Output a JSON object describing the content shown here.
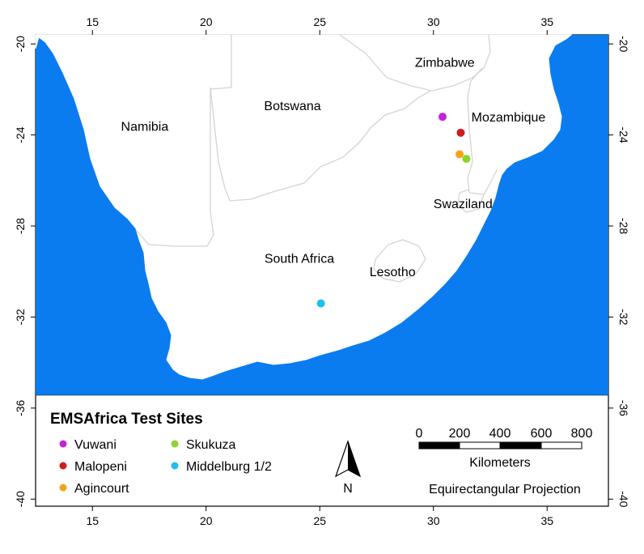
{
  "map": {
    "x_ticks": [
      "15",
      "20",
      "25",
      "30",
      "35"
    ],
    "y_ticks": [
      "-20",
      "-24",
      "-28",
      "-32",
      "-36",
      "-40"
    ],
    "colors": {
      "ocean": "#0a7cf0",
      "land": "#ffffff",
      "border": "#d4d4d4"
    },
    "countries": [
      {
        "name": "Zimbabwe",
        "lon": 30.5,
        "lat": -20.8
      },
      {
        "name": "Botswana",
        "lon": 23.8,
        "lat": -22.7
      },
      {
        "name": "Mozambique",
        "lon": 33.3,
        "lat": -23.2
      },
      {
        "name": "Namibia",
        "lon": 17.3,
        "lat": -23.6
      },
      {
        "name": "Swaziland",
        "lon": 31.3,
        "lat": -27.0
      },
      {
        "name": "South Africa",
        "lon": 24.1,
        "lat": -29.4
      },
      {
        "name": "Lesotho",
        "lon": 28.2,
        "lat": -30.0
      }
    ]
  },
  "legend": {
    "title": "EMSAfrica Test Sites",
    "sites": [
      {
        "name": "Vuwani",
        "color": "#c522db",
        "lon": 30.4,
        "lat": -23.2
      },
      {
        "name": "Malopeni",
        "color": "#d01c1c",
        "lon": 31.2,
        "lat": -23.9
      },
      {
        "name": "Agincourt",
        "color": "#f5a21b",
        "lon": 31.15,
        "lat": -24.85
      },
      {
        "name": "Skukuza",
        "color": "#8bd42b",
        "lon": 31.45,
        "lat": -25.05
      },
      {
        "name": "Middelburg 1/2",
        "color": "#1cbfee",
        "lon": 25.05,
        "lat": -31.4
      }
    ]
  },
  "north_arrow": {
    "label": "N"
  },
  "scale_bar": {
    "labels": [
      "0",
      "200",
      "400",
      "600",
      "800"
    ],
    "unit": "Kilometers"
  },
  "projection": "Equirectangular Projection"
}
